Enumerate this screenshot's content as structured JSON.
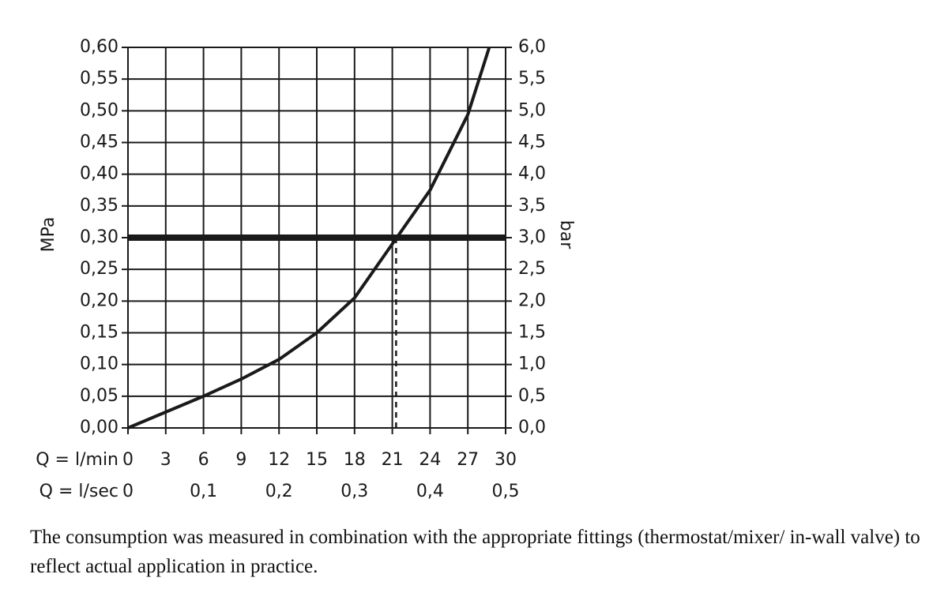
{
  "chart_data": {
    "type": "line",
    "y_label": "MPa",
    "y2_label": "bar",
    "x_label": "Q = l/min",
    "x2_label": "Q = l/sec",
    "x": [
      0,
      3,
      6,
      9,
      12,
      15,
      18,
      21,
      24,
      27,
      28.7
    ],
    "values": [
      0,
      0.025,
      0.05,
      0.077,
      0.108,
      0.15,
      0.205,
      0.29,
      0.375,
      0.494,
      0.6
    ],
    "color": "#1a1a1a",
    "xlim": [
      0,
      30
    ],
    "xticks": [
      0,
      3,
      6,
      9,
      12,
      15,
      18,
      21,
      24,
      27,
      30
    ],
    "x2lim": [
      0,
      0.5
    ],
    "x2ticks": [
      0,
      {
        "value": 0.1,
        "label": "0,1"
      },
      {
        "value": 0.2,
        "label": "0,2"
      },
      {
        "value": 0.3,
        "label": "0,3"
      },
      {
        "value": 0.4,
        "label": "0,4"
      },
      {
        "value": 0.5,
        "label": "0,5"
      }
    ],
    "ylim": [
      0,
      0.6
    ],
    "yticks": [
      {
        "value": 0,
        "label": "0,00"
      },
      {
        "value": 0.05,
        "label": "0,05"
      },
      {
        "value": 0.1,
        "label": "0,10"
      },
      {
        "value": 0.15,
        "label": "0,15"
      },
      {
        "value": 0.2,
        "label": "0,20"
      },
      {
        "value": 0.25,
        "label": "0,25"
      },
      {
        "value": 0.3,
        "label": "0,30"
      },
      {
        "value": 0.35,
        "label": "0,35"
      },
      {
        "value": 0.4,
        "label": "0,40"
      },
      {
        "value": 0.45,
        "label": "0,45"
      },
      {
        "value": 0.5,
        "label": "0,50"
      },
      {
        "value": 0.55,
        "label": "0,55"
      },
      {
        "value": 0.6,
        "label": "0,60"
      }
    ],
    "y2lim": [
      0,
      6
    ],
    "y2ticks": [
      {
        "value": 0,
        "label": "0,0"
      },
      {
        "value": 0.5,
        "label": "0,5"
      },
      {
        "value": 1,
        "label": "1,0"
      },
      {
        "value": 1.5,
        "label": "1,5"
      },
      {
        "value": 2,
        "label": "2,0"
      },
      {
        "value": 2.5,
        "label": "2,5"
      },
      {
        "value": 3,
        "label": "3,0"
      },
      {
        "value": 3.5,
        "label": "3,5"
      },
      {
        "value": 4,
        "label": "4,0"
      },
      {
        "value": 4.5,
        "label": "4,5"
      },
      {
        "value": 5,
        "label": "5,0"
      },
      {
        "value": 5.5,
        "label": "5,5"
      },
      {
        "value": 6,
        "label": "6,0"
      }
    ],
    "grid": true,
    "threshold_y": 0.3,
    "threshold_x": 21.3,
    "note": "The consumption was measured in combination with the appropriate fittings (thermostat/mixer/ in-wall valve) to reflect actual application in practice."
  }
}
